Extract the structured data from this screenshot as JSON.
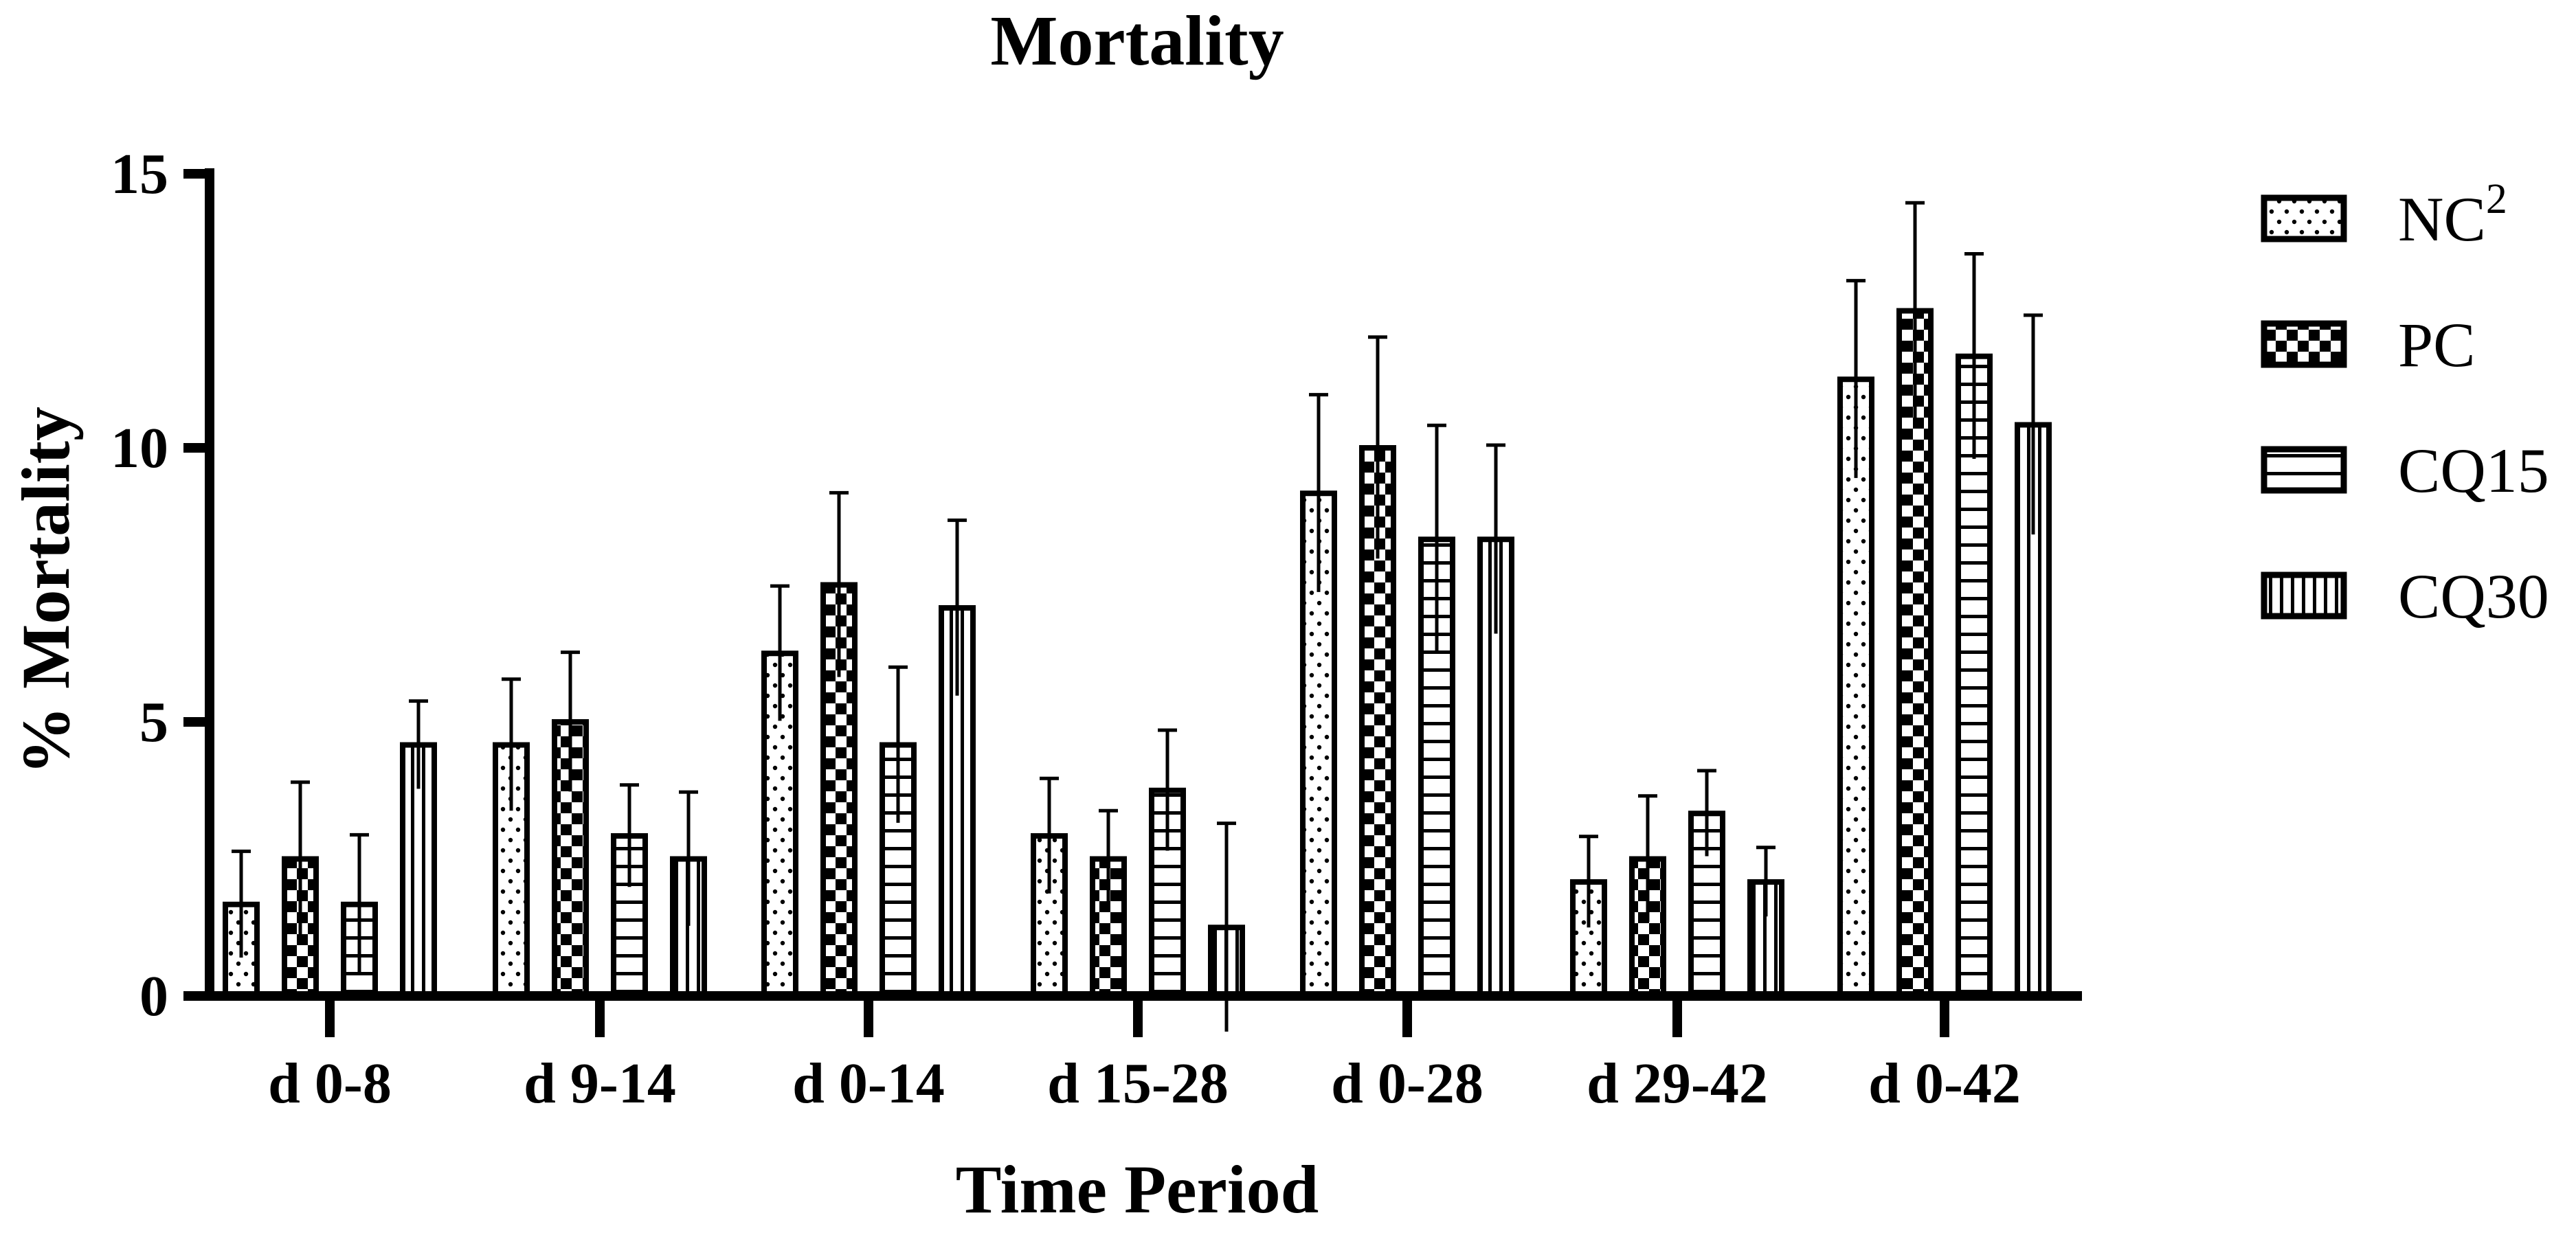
{
  "chart_data": {
    "type": "bar",
    "title": "Mortality",
    "xlabel": "Time Period",
    "ylabel": "% Mortality",
    "ylim": [
      0,
      15
    ],
    "yticks": [
      "0",
      "5",
      "10",
      "15"
    ],
    "grid": false,
    "legend_position": "right",
    "categories": [
      "d 0-8",
      "d 9-14",
      "d 0-14",
      "d 15-28",
      "d 0-28",
      "d 29-42",
      "d 0-42"
    ],
    "series": [
      {
        "name": "NC",
        "superscript": "2",
        "pattern": "dots",
        "values": [
          1.67,
          4.58,
          6.25,
          2.92,
          9.17,
          2.08,
          11.25
        ],
        "errors": [
          0.97,
          1.2,
          1.23,
          1.05,
          1.8,
          0.83,
          1.8
        ]
      },
      {
        "name": "PC",
        "superscript": "",
        "pattern": "checker",
        "values": [
          2.5,
          5.0,
          7.5,
          2.5,
          10.0,
          2.5,
          12.5
        ],
        "errors": [
          1.4,
          1.27,
          1.68,
          0.88,
          2.02,
          1.15,
          1.97
        ]
      },
      {
        "name": "CQ15",
        "superscript": "",
        "pattern": "hlines",
        "values": [
          1.67,
          2.92,
          4.58,
          3.75,
          8.33,
          3.33,
          11.67
        ],
        "errors": [
          1.27,
          0.93,
          1.42,
          1.1,
          2.08,
          0.78,
          1.87
        ]
      },
      {
        "name": "CQ30",
        "superscript": "",
        "pattern": "vlines",
        "values": [
          4.58,
          2.5,
          7.08,
          1.25,
          8.33,
          2.08,
          10.42
        ],
        "errors": [
          0.8,
          1.22,
          1.6,
          1.9,
          1.72,
          0.63,
          2.0
        ]
      }
    ]
  }
}
